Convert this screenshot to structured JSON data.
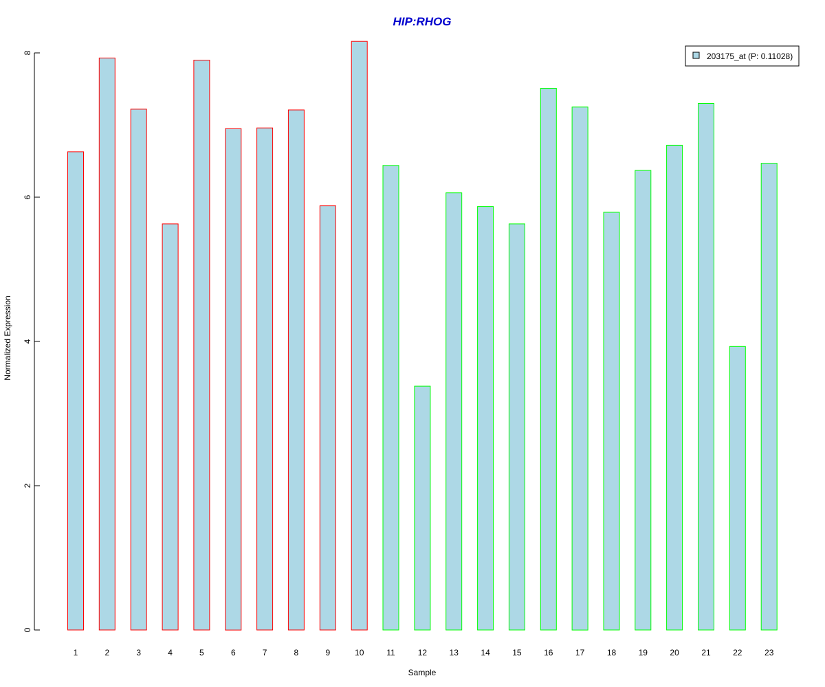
{
  "chart_data": {
    "type": "bar",
    "title": "HIP:RHOG",
    "xlabel": "Sample",
    "ylabel": "Normalized Expression",
    "categories": [
      "1",
      "2",
      "3",
      "4",
      "5",
      "6",
      "7",
      "8",
      "9",
      "10",
      "11",
      "12",
      "13",
      "14",
      "15",
      "16",
      "17",
      "18",
      "19",
      "20",
      "21",
      "22",
      "23"
    ],
    "values": [
      6.63,
      7.93,
      7.22,
      5.63,
      7.9,
      6.95,
      6.96,
      7.21,
      5.88,
      8.16,
      6.44,
      3.38,
      6.06,
      5.87,
      5.63,
      7.51,
      7.25,
      5.79,
      6.37,
      6.72,
      7.3,
      3.93,
      6.47
    ],
    "ylim": [
      0,
      8.2
    ],
    "yticks": [
      0,
      2,
      4,
      6,
      8
    ],
    "grid": false,
    "legend": {
      "position": "top-right",
      "entries": [
        {
          "label": "203175_at (P: 0.11028)",
          "color": "#add8e6"
        }
      ]
    },
    "colors": {
      "bar_fill": "#add8e6",
      "group1_border": "#ff0000",
      "group2_border": "#00ff00",
      "title": "#0000cd"
    },
    "group1_count": 10
  }
}
